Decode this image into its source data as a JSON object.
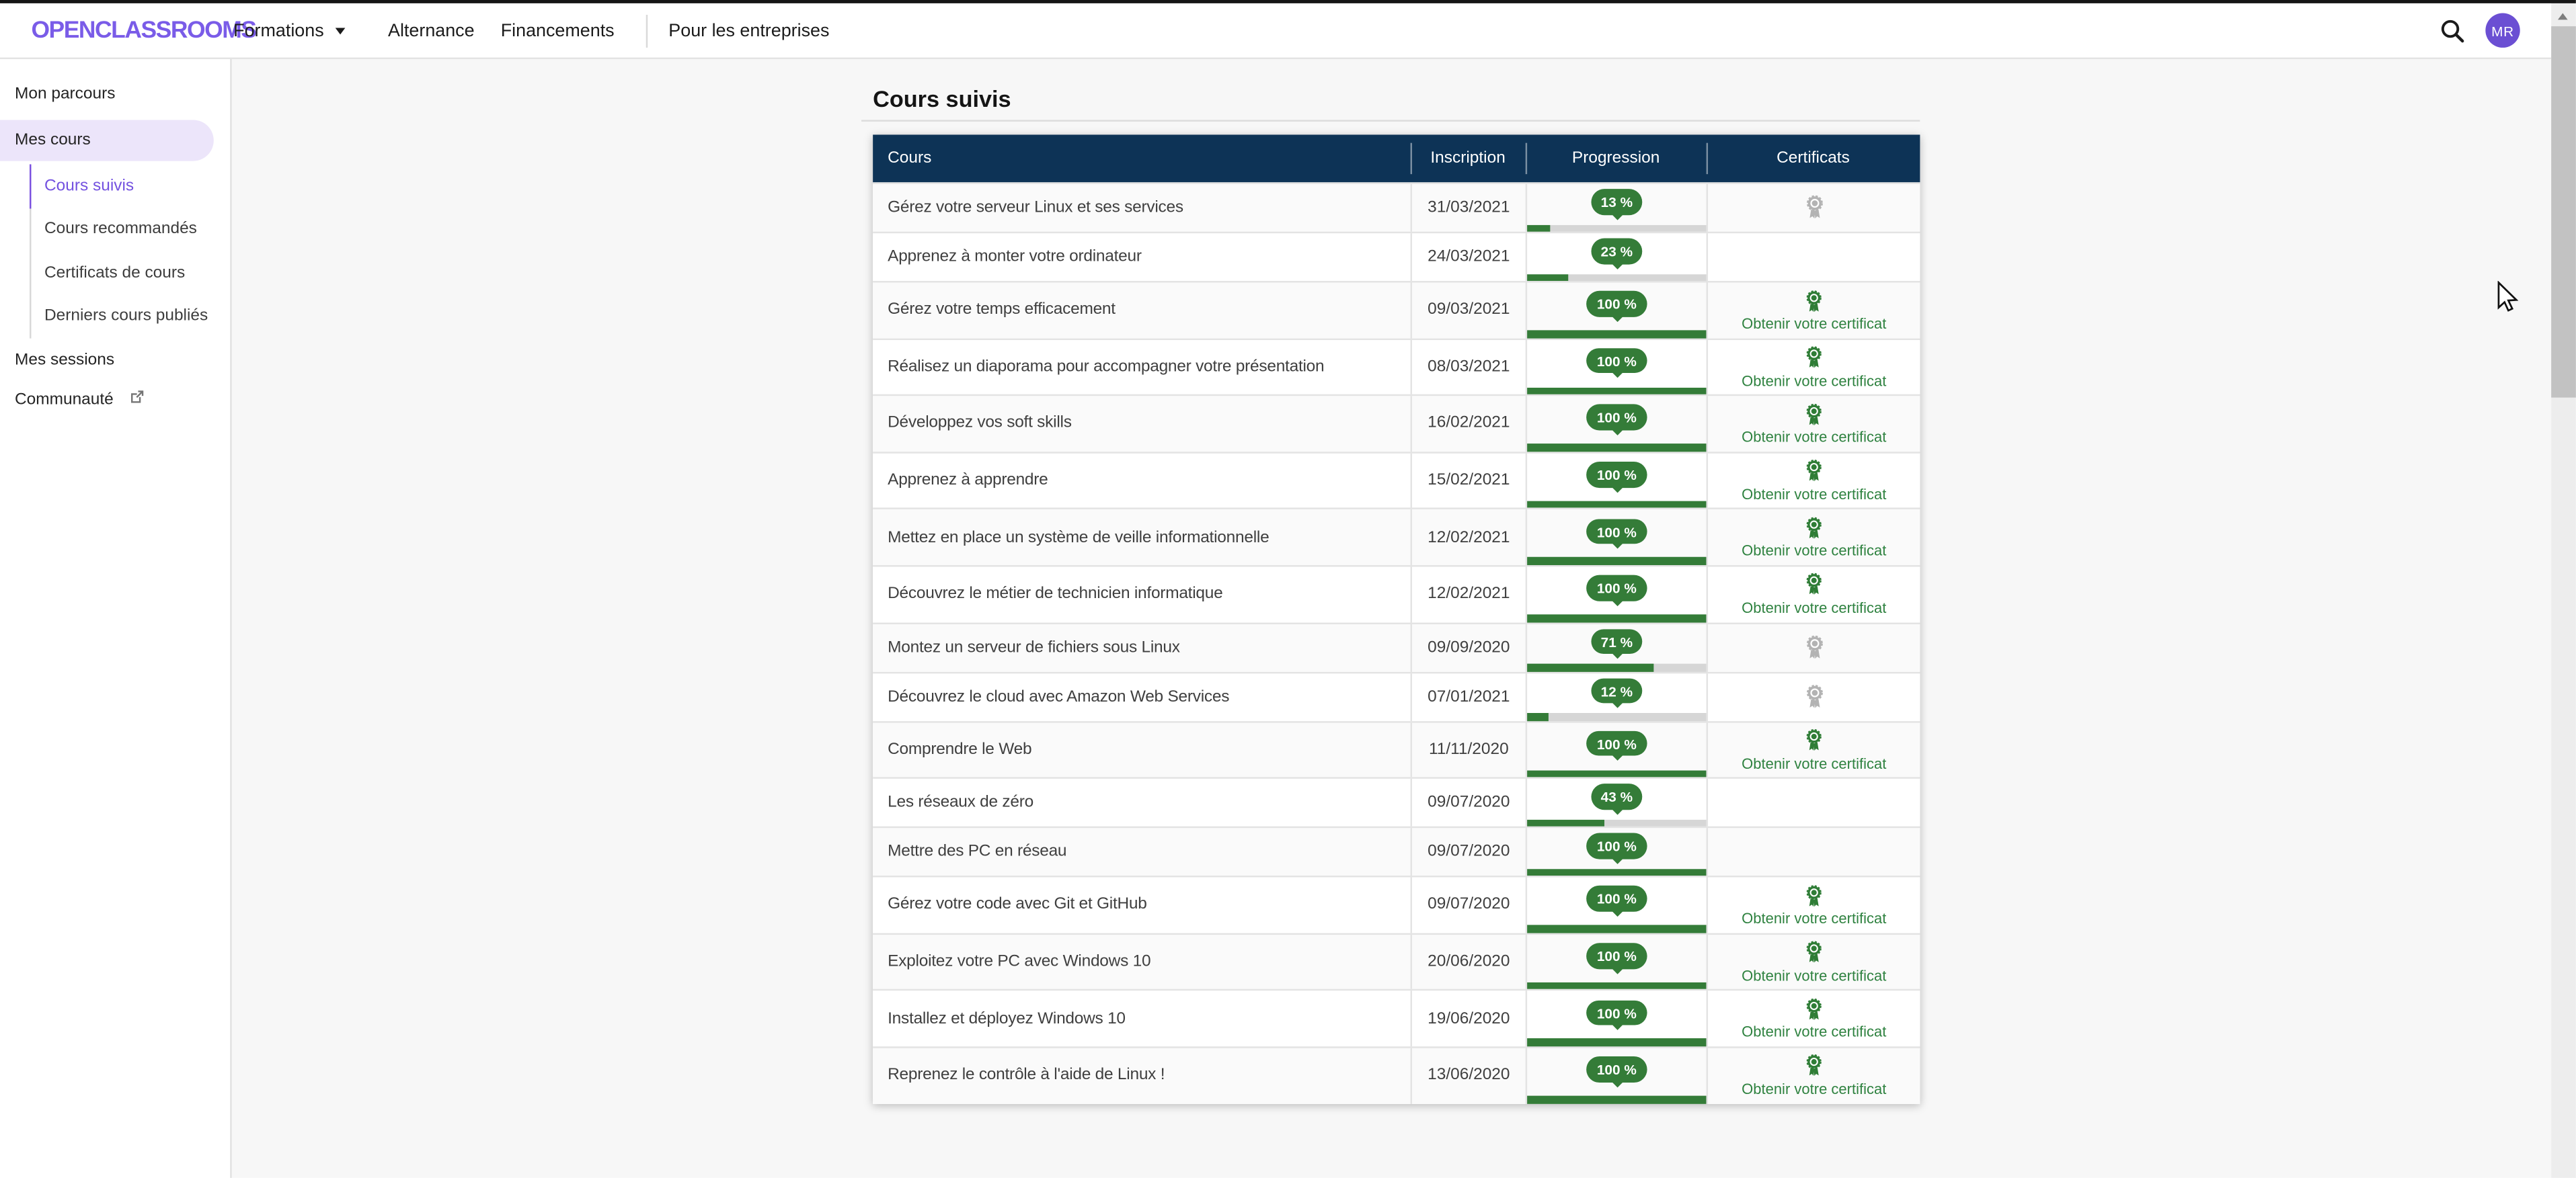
{
  "topbar": {
    "brand": "OPENCLASSROOMS",
    "formations": "Formations",
    "alternance": "Alternance",
    "financements": "Financements",
    "entreprises": "Pour les entreprises",
    "avatar_initials": "MR"
  },
  "sidebar": {
    "mon_parcours": "Mon parcours",
    "mes_cours": "Mes cours",
    "children": [
      "Cours suivis",
      "Cours recommandés",
      "Certificats de cours",
      "Derniers cours publiés"
    ],
    "mes_sessions": "Mes sessions",
    "communaute": "Communauté"
  },
  "main": {
    "title": "Cours suivis",
    "table": {
      "headers": [
        "Cours",
        "Inscription",
        "Progression",
        "Certificats"
      ],
      "cert_link_label": "Obtenir votre certificat",
      "rows": [
        {
          "title": "Gérez votre serveur Linux et ses services",
          "date": "31/03/2021",
          "progress": 13,
          "progress_label": "13 %",
          "certificate": "locked"
        },
        {
          "title": "Apprenez à monter votre ordinateur",
          "date": "24/03/2021",
          "progress": 23,
          "progress_label": "23 %",
          "certificate": "none"
        },
        {
          "title": "Gérez votre temps efficacement",
          "date": "09/03/2021",
          "progress": 100,
          "progress_label": "100 %",
          "certificate": "available"
        },
        {
          "title": "Réalisez un diaporama pour accompagner votre présentation",
          "date": "08/03/2021",
          "progress": 100,
          "progress_label": "100 %",
          "certificate": "available"
        },
        {
          "title": "Développez vos soft skills",
          "date": "16/02/2021",
          "progress": 100,
          "progress_label": "100 %",
          "certificate": "available"
        },
        {
          "title": "Apprenez à apprendre",
          "date": "15/02/2021",
          "progress": 100,
          "progress_label": "100 %",
          "certificate": "available"
        },
        {
          "title": "Mettez en place un système de veille informationnelle",
          "date": "12/02/2021",
          "progress": 100,
          "progress_label": "100 %",
          "certificate": "available"
        },
        {
          "title": "Découvrez le métier de technicien informatique",
          "date": "12/02/2021",
          "progress": 100,
          "progress_label": "100 %",
          "certificate": "available"
        },
        {
          "title": "Montez un serveur de fichiers sous Linux",
          "date": "09/09/2020",
          "progress": 71,
          "progress_label": "71 %",
          "certificate": "locked"
        },
        {
          "title": "Découvrez le cloud avec Amazon Web Services",
          "date": "07/01/2021",
          "progress": 12,
          "progress_label": "12 %",
          "certificate": "locked"
        },
        {
          "title": "Comprendre le Web",
          "date": "11/11/2020",
          "progress": 100,
          "progress_label": "100 %",
          "certificate": "available"
        },
        {
          "title": "Les réseaux de zéro",
          "date": "09/07/2020",
          "progress": 43,
          "progress_label": "43 %",
          "certificate": "none"
        },
        {
          "title": "Mettre des PC en réseau",
          "date": "09/07/2020",
          "progress": 100,
          "progress_label": "100 %",
          "certificate": "none"
        },
        {
          "title": "Gérez votre code avec Git et GitHub",
          "date": "09/07/2020",
          "progress": 100,
          "progress_label": "100 %",
          "certificate": "available"
        },
        {
          "title": "Exploitez votre PC avec Windows 10",
          "date": "20/06/2020",
          "progress": 100,
          "progress_label": "100 %",
          "certificate": "available"
        },
        {
          "title": "Installez et déployez Windows 10",
          "date": "19/06/2020",
          "progress": 100,
          "progress_label": "100 %",
          "certificate": "available"
        },
        {
          "title": "Reprenez le contrôle à l'aide de Linux !",
          "date": "13/06/2020",
          "progress": 100,
          "progress_label": "100 %",
          "certificate": "available"
        }
      ]
    }
  },
  "colors": {
    "brand_purple": "#7a5ce8",
    "avatar_purple": "#6b4fd3",
    "active_purple": "#7452e0",
    "active_pill_bg": "#ece5fa",
    "table_header_navy": "#0d3356",
    "progress_green": "#347c38",
    "certificate_green": "#2f8240",
    "certificate_locked_gray": "#b3b3b3",
    "row_stripe": "#fafafa",
    "main_background": "#f7f7f7"
  }
}
